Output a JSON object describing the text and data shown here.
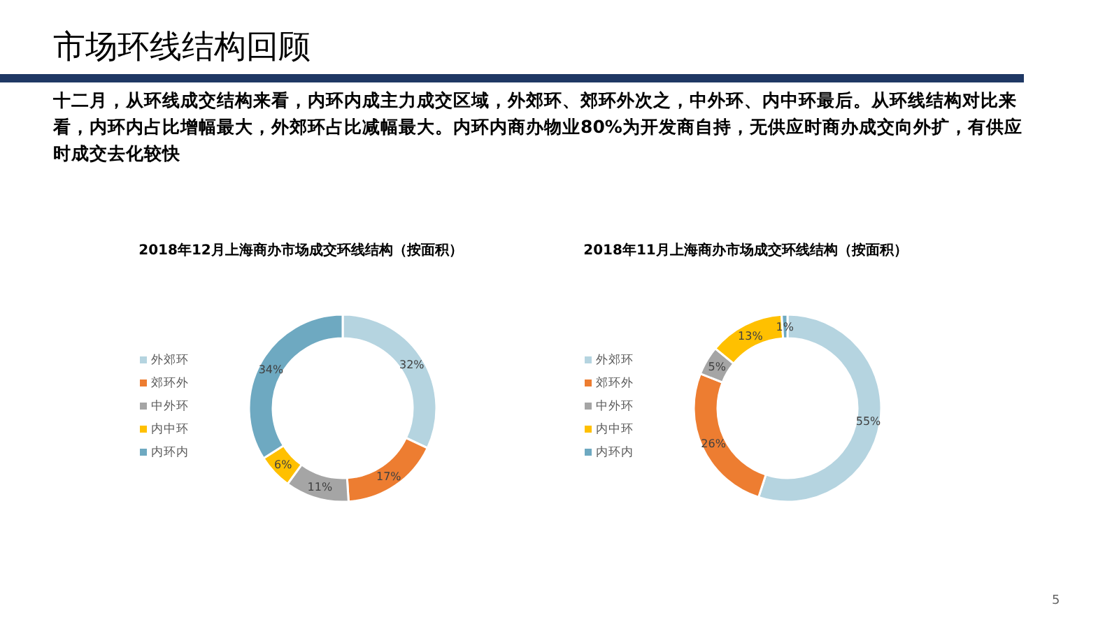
{
  "chart_data": [
    {
      "type": "other",
      "title": "市场环线结构回顾",
      "subtitle": "十二月，从环线成交结构来看，内环内成主力成交区域，外郊环、郊环外次之，中外环、内中环最后。从环线结构对比来看，内环内占比增幅最大，外郊环占比减幅最大。内环内商办物业80%为开发商自持，无供应时商办成交向外扩，有供应时成交去化较快",
      "annotations": [
        "5"
      ]
    },
    {
      "type": "donut",
      "title": "2018年12月上海商办市场成交环线结构（按面积）",
      "categories": [
        "外郊环",
        "郊环外",
        "中外环",
        "内中环",
        "内环内"
      ],
      "values": [
        32,
        17,
        11,
        6,
        34
      ],
      "value_labels": [
        "32%",
        "17%",
        "11%",
        "6%",
        "34%"
      ],
      "colors": [
        "#b5d4e0",
        "#ed7d31",
        "#a5a5a5",
        "#ffc000",
        "#6ea9c1"
      ],
      "legend": "left"
    },
    {
      "type": "donut",
      "title": "2018年11月上海商办市场成交环线结构（按面积）",
      "categories": [
        "外郊环",
        "郊环外",
        "中外环",
        "内中环",
        "内环内"
      ],
      "values": [
        55,
        26,
        5,
        13,
        1
      ],
      "value_labels": [
        "55%",
        "26%",
        "5%",
        "13%",
        "1%"
      ],
      "colors": [
        "#b5d4e0",
        "#ed7d31",
        "#a5a5a5",
        "#ffc000",
        "#6ea9c1"
      ],
      "legend": "left"
    }
  ]
}
